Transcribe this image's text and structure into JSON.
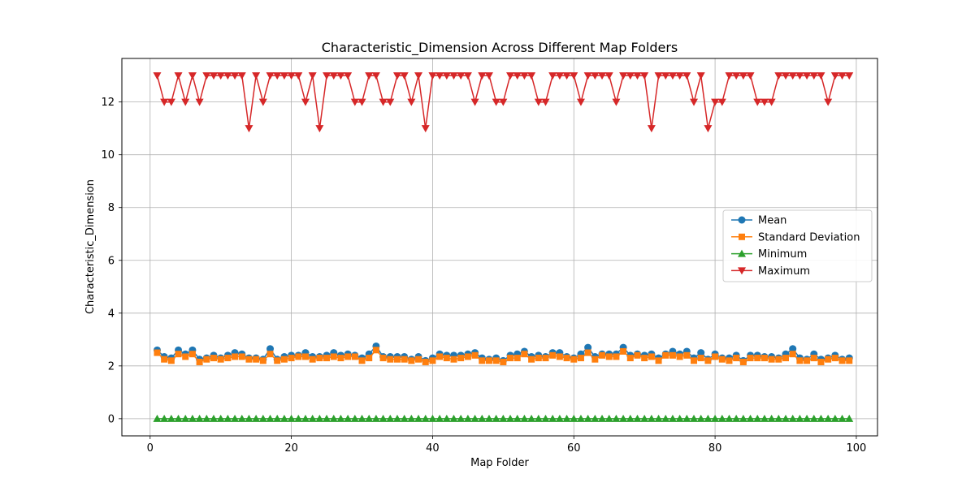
{
  "chart_data": {
    "type": "line",
    "title": "Characteristic_Dimension Across Different Map Folders",
    "xlabel": "Map Folder",
    "ylabel": "Characteristic_Dimension",
    "xlim": [
      -4,
      103
    ],
    "ylim": [
      -0.65,
      13.65
    ],
    "xticks": [
      0,
      20,
      40,
      60,
      80,
      100
    ],
    "yticks": [
      0,
      2,
      4,
      6,
      8,
      10,
      12
    ],
    "grid": true,
    "legend_position": "center-right",
    "x": [
      1,
      2,
      3,
      4,
      5,
      6,
      7,
      8,
      9,
      10,
      11,
      12,
      13,
      14,
      15,
      16,
      17,
      18,
      19,
      20,
      21,
      22,
      23,
      24,
      25,
      26,
      27,
      28,
      29,
      30,
      31,
      32,
      33,
      34,
      35,
      36,
      37,
      38,
      39,
      40,
      41,
      42,
      43,
      44,
      45,
      46,
      47,
      48,
      49,
      50,
      51,
      52,
      53,
      54,
      55,
      56,
      57,
      58,
      59,
      60,
      61,
      62,
      63,
      64,
      65,
      66,
      67,
      68,
      69,
      70,
      71,
      72,
      73,
      74,
      75,
      76,
      77,
      78,
      79,
      80,
      81,
      82,
      83,
      84,
      85,
      86,
      87,
      88,
      89,
      90,
      91,
      92,
      93,
      94,
      95,
      96,
      97,
      98,
      99
    ],
    "series": [
      {
        "name": "Mean",
        "color": "#1f77b4",
        "marker": "circle",
        "values": [
          2.6,
          2.35,
          2.3,
          2.6,
          2.45,
          2.6,
          2.25,
          2.3,
          2.4,
          2.3,
          2.4,
          2.5,
          2.45,
          2.3,
          2.3,
          2.25,
          2.65,
          2.25,
          2.35,
          2.4,
          2.4,
          2.5,
          2.35,
          2.35,
          2.4,
          2.5,
          2.4,
          2.45,
          2.4,
          2.3,
          2.45,
          2.75,
          2.35,
          2.35,
          2.35,
          2.35,
          2.25,
          2.35,
          2.2,
          2.3,
          2.45,
          2.4,
          2.4,
          2.4,
          2.45,
          2.5,
          2.3,
          2.25,
          2.3,
          2.2,
          2.4,
          2.45,
          2.55,
          2.35,
          2.4,
          2.35,
          2.5,
          2.5,
          2.35,
          2.3,
          2.45,
          2.7,
          2.35,
          2.45,
          2.45,
          2.45,
          2.7,
          2.4,
          2.45,
          2.4,
          2.45,
          2.3,
          2.45,
          2.55,
          2.45,
          2.55,
          2.3,
          2.5,
          2.25,
          2.45,
          2.3,
          2.3,
          2.4,
          2.2,
          2.4,
          2.4,
          2.35,
          2.35,
          2.3,
          2.45,
          2.65,
          2.3,
          2.25,
          2.45,
          2.25,
          2.3,
          2.4,
          2.25,
          2.3
        ]
      },
      {
        "name": "Standard Deviation",
        "color": "#ff7f0e",
        "marker": "square",
        "values": [
          2.5,
          2.25,
          2.2,
          2.45,
          2.35,
          2.45,
          2.15,
          2.25,
          2.3,
          2.25,
          2.3,
          2.35,
          2.35,
          2.25,
          2.25,
          2.2,
          2.45,
          2.2,
          2.25,
          2.3,
          2.35,
          2.35,
          2.25,
          2.3,
          2.3,
          2.35,
          2.3,
          2.35,
          2.35,
          2.2,
          2.3,
          2.6,
          2.3,
          2.25,
          2.25,
          2.25,
          2.2,
          2.25,
          2.15,
          2.2,
          2.35,
          2.3,
          2.25,
          2.3,
          2.35,
          2.4,
          2.2,
          2.2,
          2.2,
          2.15,
          2.3,
          2.3,
          2.45,
          2.25,
          2.3,
          2.3,
          2.4,
          2.35,
          2.3,
          2.25,
          2.3,
          2.5,
          2.25,
          2.4,
          2.35,
          2.35,
          2.55,
          2.3,
          2.4,
          2.3,
          2.35,
          2.2,
          2.4,
          2.4,
          2.35,
          2.4,
          2.2,
          2.3,
          2.2,
          2.35,
          2.25,
          2.2,
          2.3,
          2.15,
          2.3,
          2.3,
          2.3,
          2.25,
          2.25,
          2.3,
          2.45,
          2.2,
          2.2,
          2.3,
          2.15,
          2.25,
          2.3,
          2.2,
          2.2
        ]
      },
      {
        "name": "Minimum",
        "color": "#2ca02c",
        "marker": "triangle-up",
        "values": [
          0,
          0,
          0,
          0,
          0,
          0,
          0,
          0,
          0,
          0,
          0,
          0,
          0,
          0,
          0,
          0,
          0,
          0,
          0,
          0,
          0,
          0,
          0,
          0,
          0,
          0,
          0,
          0,
          0,
          0,
          0,
          0,
          0,
          0,
          0,
          0,
          0,
          0,
          0,
          0,
          0,
          0,
          0,
          0,
          0,
          0,
          0,
          0,
          0,
          0,
          0,
          0,
          0,
          0,
          0,
          0,
          0,
          0,
          0,
          0,
          0,
          0,
          0,
          0,
          0,
          0,
          0,
          0,
          0,
          0,
          0,
          0,
          0,
          0,
          0,
          0,
          0,
          0,
          0,
          0,
          0,
          0,
          0,
          0,
          0,
          0,
          0,
          0,
          0,
          0,
          0,
          0,
          0,
          0,
          0,
          0,
          0,
          0,
          0
        ]
      },
      {
        "name": "Maximum",
        "color": "#d62728",
        "marker": "triangle-down",
        "values": [
          13,
          12,
          12,
          13,
          12,
          13,
          12,
          13,
          13,
          13,
          13,
          13,
          13,
          11,
          13,
          12,
          13,
          13,
          13,
          13,
          13,
          12,
          13,
          11,
          13,
          13,
          13,
          13,
          12,
          12,
          13,
          13,
          12,
          12,
          13,
          13,
          12,
          13,
          11,
          13,
          13,
          13,
          13,
          13,
          13,
          12,
          13,
          13,
          12,
          12,
          13,
          13,
          13,
          13,
          12,
          12,
          13,
          13,
          13,
          13,
          12,
          13,
          13,
          13,
          13,
          12,
          13,
          13,
          13,
          13,
          11,
          13,
          13,
          13,
          13,
          13,
          12,
          13,
          11,
          12,
          12,
          13,
          13,
          13,
          13,
          12,
          12,
          12,
          13,
          13,
          13,
          13,
          13,
          13,
          13,
          12,
          13,
          13,
          13
        ]
      }
    ]
  }
}
